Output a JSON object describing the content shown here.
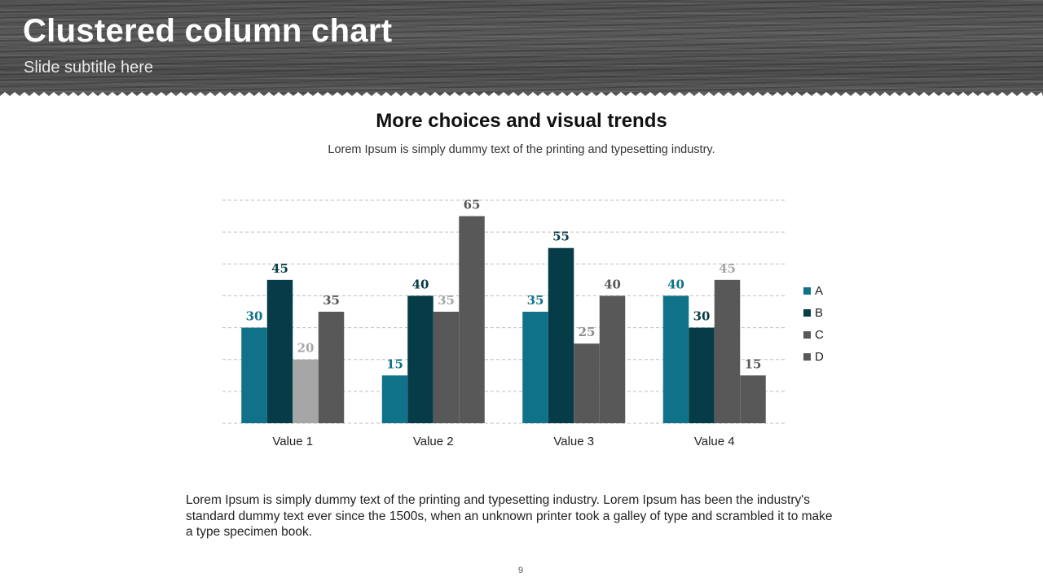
{
  "slide": {
    "title": "Clustered column chart",
    "subtitle": "Slide subtitle here",
    "body_text": "Lorem Ipsum is simply dummy text of the printing and typesetting industry. Lorem Ipsum has been the industry's standard dummy text ever since the 1500s, when an unknown printer took a galley of type and scrambled it to make a type specimen book.",
    "page_number": "9"
  },
  "colors": {
    "header_bg": "#4f4f4f",
    "series_A": "#0f7288",
    "series_B": "#063b48",
    "series_C": "#a6a6a6",
    "series_D": "#585858",
    "grid": "#bfbfbf"
  },
  "chart_data": {
    "type": "bar",
    "title": "More choices and visual trends",
    "subtitle": "Lorem Ipsum is simply dummy text of the printing and typesetting industry.",
    "categories": [
      "Value 1",
      "Value 2",
      "Value 3",
      "Value 4"
    ],
    "series": [
      {
        "name": "A",
        "values": [
          30,
          15,
          35,
          40
        ]
      },
      {
        "name": "B",
        "values": [
          45,
          40,
          55,
          30
        ]
      },
      {
        "name": "C",
        "values": [
          20,
          35,
          25,
          45
        ]
      },
      {
        "name": "D",
        "values": [
          35,
          65,
          40,
          15
        ]
      }
    ],
    "bar_colors": [
      [
        "#0f7288",
        "#0f7288",
        "#0f7288",
        "#0f7288"
      ],
      [
        "#063b48",
        "#063b48",
        "#063b48",
        "#063b48"
      ],
      [
        "#a6a6a6",
        "#585858",
        "#585858",
        "#585858"
      ],
      [
        "#585858",
        "#585858",
        "#585858",
        "#585858"
      ]
    ],
    "label_colors": [
      [
        "#0f7288",
        "#0f7288",
        "#0f7288",
        "#0f7288"
      ],
      [
        "#063b48",
        "#063b48",
        "#063b48",
        "#063b48"
      ],
      [
        "#a6a6a6",
        "#a6a6a6",
        "#8c8c8c",
        "#a6a6a6"
      ],
      [
        "#585858",
        "#585858",
        "#585858",
        "#585858"
      ]
    ],
    "legend_colors": [
      "#0f7288",
      "#063b48",
      "#585858",
      "#585858"
    ],
    "ylim": [
      0,
      70
    ],
    "ytick_step": 10,
    "grid": true,
    "legend_position": "right",
    "xlabel": "",
    "ylabel": ""
  }
}
